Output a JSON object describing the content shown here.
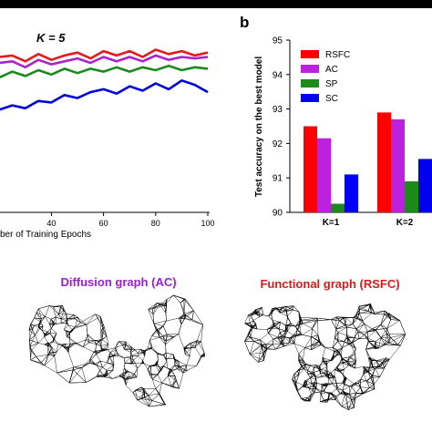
{
  "chart_data": [
    {
      "type": "line",
      "title": "K = 5",
      "xlabel": "ber of Training Epochs",
      "ylabel": "",
      "xlim": [
        0,
        100
      ],
      "ylim": [
        0.86,
        0.98
      ],
      "x_ticks": [
        40,
        60,
        80,
        100
      ],
      "x_tick_labels": [
        "40",
        "60",
        "80",
        "100"
      ],
      "series": [
        {
          "color": "#e41a1c",
          "x": [
            0,
            5,
            10,
            15,
            20,
            25,
            30,
            35,
            40,
            45,
            50,
            55,
            60,
            65,
            70,
            75,
            80,
            85,
            90,
            95,
            100
          ],
          "values": [
            0.96,
            0.962,
            0.965,
            0.963,
            0.966,
            0.967,
            0.963,
            0.968,
            0.964,
            0.967,
            0.969,
            0.965,
            0.97,
            0.967,
            0.97,
            0.966,
            0.971,
            0.968,
            0.97,
            0.967,
            0.969
          ]
        },
        {
          "color": "#aa22cc",
          "x": [
            0,
            5,
            10,
            15,
            20,
            25,
            30,
            35,
            40,
            45,
            50,
            55,
            60,
            65,
            70,
            75,
            80,
            85,
            90,
            95,
            100
          ],
          "values": [
            0.955,
            0.958,
            0.961,
            0.958,
            0.962,
            0.963,
            0.959,
            0.964,
            0.961,
            0.963,
            0.965,
            0.962,
            0.966,
            0.963,
            0.966,
            0.963,
            0.967,
            0.964,
            0.966,
            0.965,
            0.966
          ]
        },
        {
          "color": "#1a8a1a",
          "x": [
            0,
            5,
            10,
            15,
            20,
            25,
            30,
            35,
            40,
            45,
            50,
            55,
            60,
            65,
            70,
            75,
            80,
            85,
            90,
            95,
            100
          ],
          "values": [
            0.95,
            0.953,
            0.95,
            0.955,
            0.952,
            0.956,
            0.953,
            0.957,
            0.954,
            0.958,
            0.955,
            0.958,
            0.956,
            0.959,
            0.956,
            0.959,
            0.957,
            0.96,
            0.957,
            0.959,
            0.958
          ]
        },
        {
          "color": "#0000dd",
          "x": [
            0,
            5,
            10,
            15,
            20,
            25,
            30,
            35,
            40,
            45,
            50,
            55,
            60,
            65,
            70,
            75,
            80,
            85,
            90,
            95,
            100
          ],
          "values": [
            0.915,
            0.92,
            0.925,
            0.924,
            0.93,
            0.933,
            0.931,
            0.936,
            0.935,
            0.94,
            0.938,
            0.942,
            0.944,
            0.941,
            0.946,
            0.943,
            0.948,
            0.944,
            0.95,
            0.947,
            0.942
          ]
        }
      ]
    },
    {
      "type": "bar",
      "panel_label": "b",
      "ylabel": "Test accuracy on the best model",
      "categories": [
        "K=1",
        "K=2"
      ],
      "ylim": [
        90,
        95
      ],
      "y_ticks": [
        90,
        91,
        92,
        93,
        94,
        95
      ],
      "legend_position": "top-right",
      "series": [
        {
          "name": "RSFC",
          "color": "#ff0000",
          "values": [
            92.5,
            92.9
          ]
        },
        {
          "name": "AC",
          "color": "#bb22dd",
          "values": [
            92.15,
            92.7
          ]
        },
        {
          "name": "SP",
          "color": "#1a8a1a",
          "values": [
            90.25,
            90.9
          ]
        },
        {
          "name": "SC",
          "color": "#0000ee",
          "values": [
            91.1,
            91.55
          ]
        }
      ]
    }
  ],
  "graphs": {
    "diffusion_title": "Diffusion graph (AC)",
    "diffusion_color": "#9b1fd0",
    "functional_title": "Functional graph (RSFC)",
    "functional_color": "#d21e1e"
  }
}
